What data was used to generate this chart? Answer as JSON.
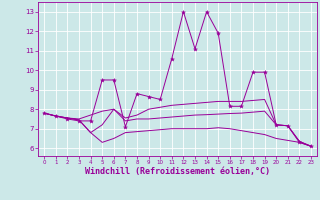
{
  "bg_color": "#cce8e8",
  "grid_color": "#ffffff",
  "line_color": "#990099",
  "marker": "*",
  "marker_size": 3,
  "xlabel": "Windchill (Refroidissement éolien,°C)",
  "xlabel_fontsize": 6,
  "yticks": [
    6,
    7,
    8,
    9,
    10,
    11,
    12,
    13
  ],
  "xticks": [
    0,
    1,
    2,
    3,
    4,
    5,
    6,
    7,
    8,
    9,
    10,
    11,
    12,
    13,
    14,
    15,
    16,
    17,
    18,
    19,
    20,
    21,
    22,
    23
  ],
  "xlim": [
    -0.5,
    23.5
  ],
  "ylim": [
    5.6,
    13.5
  ],
  "line1_x": [
    0,
    1,
    2,
    3,
    4,
    5,
    6,
    7,
    8,
    9,
    10,
    11,
    12,
    13,
    14,
    15,
    16,
    17,
    18,
    19,
    20,
    21,
    22,
    23
  ],
  "line1_y": [
    7.8,
    7.65,
    7.5,
    7.4,
    7.4,
    9.5,
    9.5,
    7.1,
    8.8,
    8.65,
    8.5,
    10.6,
    13.0,
    11.1,
    13.0,
    11.9,
    8.15,
    8.15,
    9.9,
    9.9,
    7.2,
    7.15,
    6.3,
    6.1
  ],
  "line2_x": [
    0,
    1,
    2,
    3,
    4,
    5,
    6,
    7,
    8,
    9,
    10,
    11,
    12,
    13,
    14,
    15,
    16,
    17,
    18,
    19,
    20,
    21,
    22,
    23
  ],
  "line2_y": [
    7.8,
    7.65,
    7.55,
    7.5,
    7.7,
    7.9,
    8.0,
    7.55,
    7.7,
    8.0,
    8.1,
    8.2,
    8.25,
    8.3,
    8.35,
    8.4,
    8.4,
    8.4,
    8.45,
    8.5,
    7.2,
    7.15,
    6.35,
    6.1
  ],
  "line3_x": [
    0,
    1,
    2,
    3,
    4,
    5,
    6,
    7,
    8,
    9,
    10,
    11,
    12,
    13,
    14,
    15,
    16,
    17,
    18,
    19,
    20,
    21,
    22,
    23
  ],
  "line3_y": [
    7.8,
    7.65,
    7.55,
    7.45,
    6.8,
    7.2,
    8.0,
    7.4,
    7.5,
    7.5,
    7.55,
    7.6,
    7.65,
    7.7,
    7.72,
    7.75,
    7.78,
    7.8,
    7.85,
    7.9,
    7.2,
    7.15,
    6.35,
    6.1
  ],
  "line4_x": [
    0,
    1,
    2,
    3,
    4,
    5,
    6,
    7,
    8,
    9,
    10,
    11,
    12,
    13,
    14,
    15,
    16,
    17,
    18,
    19,
    20,
    21,
    22,
    23
  ],
  "line4_y": [
    7.8,
    7.65,
    7.55,
    7.45,
    6.8,
    6.3,
    6.5,
    6.8,
    6.85,
    6.9,
    6.95,
    7.0,
    7.0,
    7.0,
    7.0,
    7.05,
    7.0,
    6.9,
    6.8,
    6.7,
    6.5,
    6.4,
    6.3,
    6.1
  ]
}
